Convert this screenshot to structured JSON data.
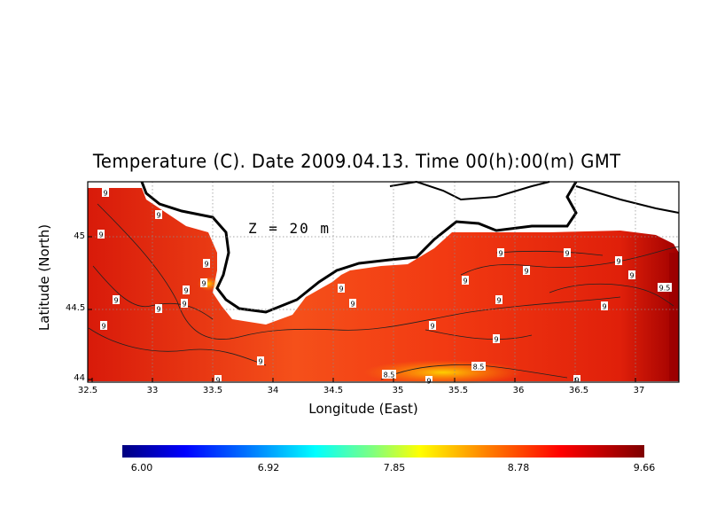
{
  "title": "Temperature (C). Date 2009.04.13. Time 00(h):00(m) GMT",
  "depth_label": "Z = 20 m",
  "x_axis": {
    "label": "Longitude (East)",
    "ticks": [
      "32.5",
      "33",
      "33.5",
      "34",
      "34.5",
      "35",
      "35.5",
      "36",
      "36.5",
      "37"
    ]
  },
  "y_axis": {
    "label": "Latitude (North)",
    "ticks": [
      "45",
      "44.5",
      "44"
    ]
  },
  "colorbar": {
    "labels": [
      "6.00",
      "6.92",
      "7.85",
      "8.78",
      "9.66"
    ]
  },
  "contour_labels": [
    "9",
    "9",
    "9",
    "9",
    "9",
    "9",
    "9",
    "9",
    "9",
    "9",
    "9",
    "9",
    "9",
    "9",
    "9",
    "9",
    "9",
    "9",
    "9",
    "9",
    "9",
    "9",
    "9",
    "9",
    "8.5",
    "8.5",
    "9.5",
    "9",
    "9"
  ],
  "colors": {
    "land": "#ffffff",
    "sea_dominant": "#f03a10",
    "warm_edge": "#b00000",
    "cool_patch": "#ffd000"
  }
}
